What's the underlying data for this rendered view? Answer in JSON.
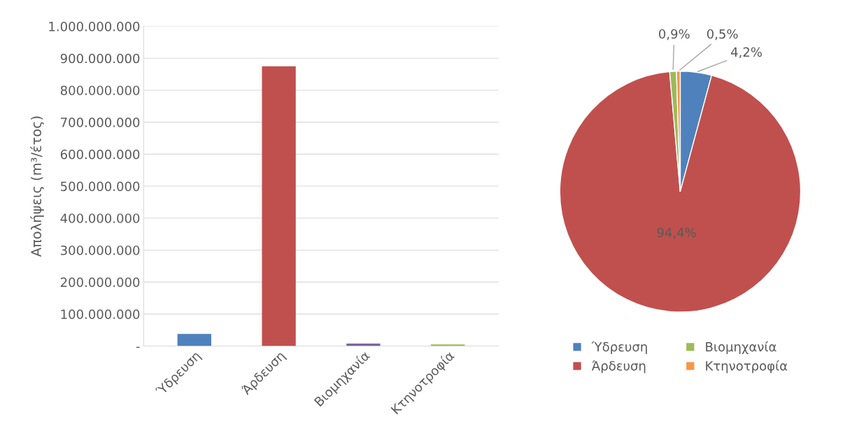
{
  "chart_data": [
    {
      "type": "bar",
      "ylabel": "Απολήψεις (m³/έτος)",
      "categories": [
        "Ύδρευση",
        "Άρδευση",
        "Βιομηχανία",
        "Κτηνοτροφία"
      ],
      "values": [
        38000000,
        875000000,
        8000000,
        5000000
      ],
      "colors": [
        "#4f81bd",
        "#c0504d",
        "#8064a2",
        "#9bbb59"
      ],
      "ylim": [
        0,
        1000000000
      ],
      "yticks": [
        {
          "value": 0,
          "label": "-"
        },
        {
          "value": 100000000,
          "label": "100.000.000"
        },
        {
          "value": 200000000,
          "label": "200.000.000"
        },
        {
          "value": 300000000,
          "label": "300.000.000"
        },
        {
          "value": 400000000,
          "label": "400.000.000"
        },
        {
          "value": 500000000,
          "label": "500.000.000"
        },
        {
          "value": 600000000,
          "label": "600.000.000"
        },
        {
          "value": 700000000,
          "label": "700.000.000"
        },
        {
          "value": 800000000,
          "label": "800.000.000"
        },
        {
          "value": 900000000,
          "label": "900.000.000"
        },
        {
          "value": 1000000000,
          "label": "1.000.000.000"
        }
      ],
      "grid": "y",
      "legend": false
    },
    {
      "type": "pie",
      "categories": [
        "Ύδρευση",
        "Άρδευση",
        "Βιομηχανία",
        "Κτηνοτροφία"
      ],
      "values": [
        4.2,
        94.4,
        0.9,
        0.5
      ],
      "colors": [
        "#4f81bd",
        "#c0504d",
        "#9bbb59",
        "#f79646"
      ],
      "value_labels": [
        "4,2%",
        "94,4%",
        "0,9%",
        "0,5%"
      ],
      "legend": "bottom"
    }
  ]
}
